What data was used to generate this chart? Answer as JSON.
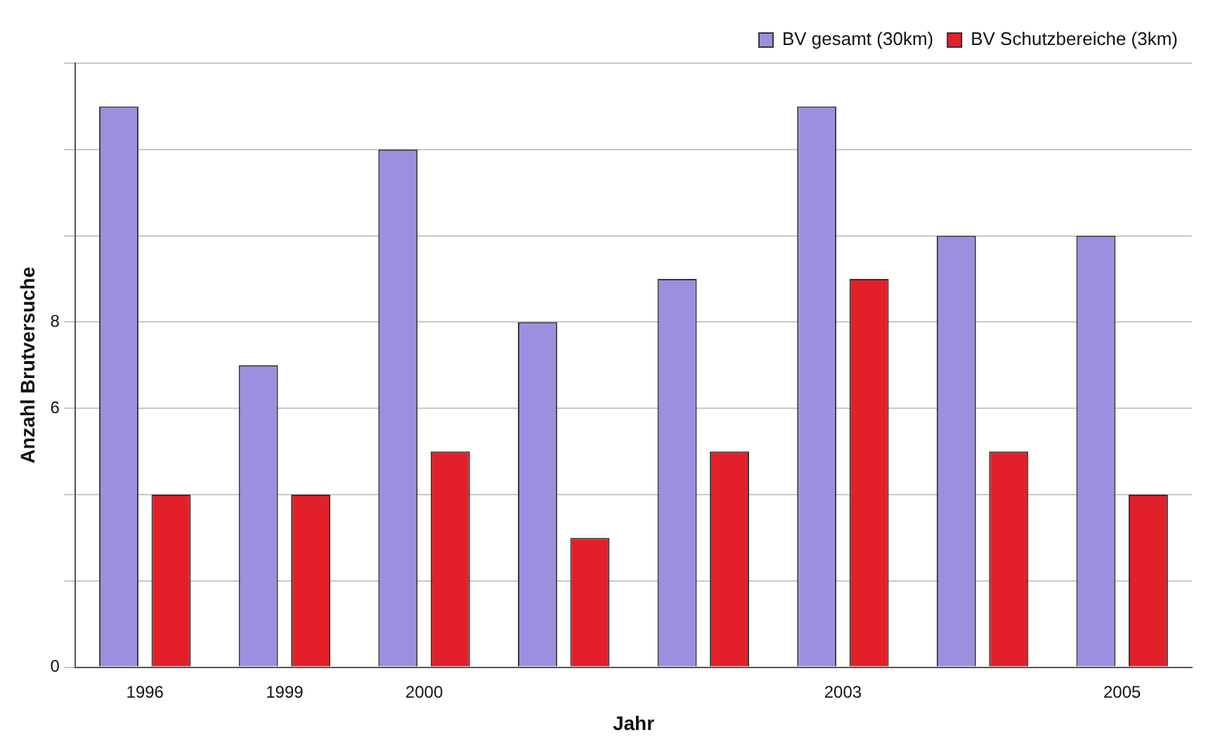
{
  "chart_data": {
    "type": "bar",
    "xlabel": "Jahr",
    "ylabel": "Anzahl Brutversuche",
    "categories": [
      "1996",
      "1999",
      "2000",
      null,
      null,
      "2003",
      null,
      "2005"
    ],
    "series": [
      {
        "name": "BV gesamt (30km)",
        "color": "#9d8fe0",
        "values": [
          13,
          7,
          12,
          8,
          9,
          13,
          10,
          10
        ]
      },
      {
        "name": "BV Schutzbereiche (3km)",
        "color": "#e3202a",
        "values": [
          4,
          4,
          5,
          3,
          5,
          9,
          5,
          4
        ]
      }
    ],
    "ylim": [
      0,
      14
    ],
    "yticks": [
      0,
      {
        "value": 2,
        "label": null
      },
      {
        "value": 4,
        "label": null
      },
      6,
      8,
      {
        "value": 10,
        "label": null
      },
      {
        "value": 12,
        "label": null
      },
      {
        "value": 14,
        "label": null
      }
    ],
    "grid": "y",
    "legend": "top right"
  }
}
